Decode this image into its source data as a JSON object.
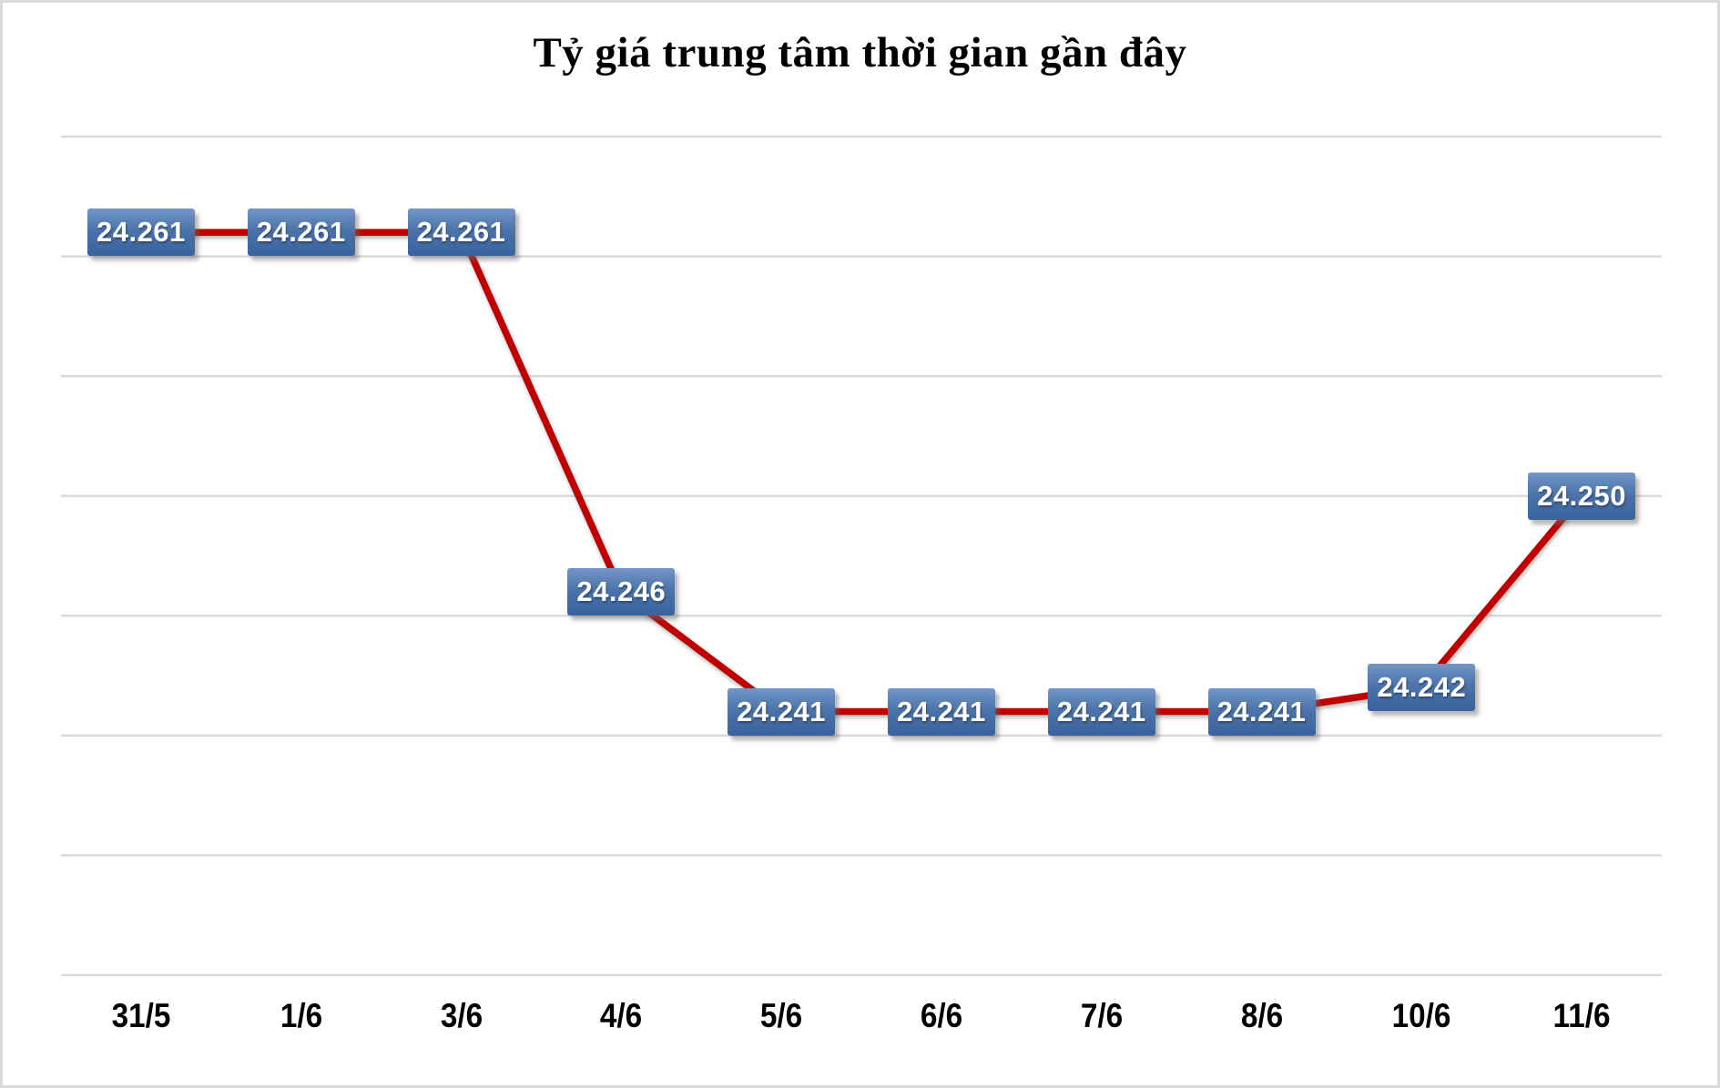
{
  "chart_data": {
    "type": "line",
    "title": "Tỷ giá trung tâm thời gian gần đây",
    "categories": [
      "31/5",
      "1/6",
      "3/6",
      "4/6",
      "5/6",
      "6/6",
      "7/6",
      "8/6",
      "10/6",
      "11/6"
    ],
    "values": [
      24261,
      24261,
      24261,
      24246,
      24241,
      24241,
      24241,
      24241,
      24242,
      24250
    ],
    "point_labels": [
      "24.261",
      "24.261",
      "24.261",
      "24.246",
      "24.241",
      "24.241",
      "24.241",
      "24.241",
      "24.242",
      "24.250"
    ],
    "xlabel": "",
    "ylabel": "",
    "ylim": [
      24230,
      24265
    ],
    "y_major_unit": 5,
    "y_axis_labels_visible": false,
    "grid": true,
    "legend": "none",
    "colors": {
      "line": "#C00000",
      "gridline": "#D9D9D9",
      "label_box_top": "#7296C6",
      "label_box_bottom": "#3A629D",
      "label_text": "#FFFFFF",
      "title_text": "#000000",
      "axis_text": "#000000"
    }
  }
}
